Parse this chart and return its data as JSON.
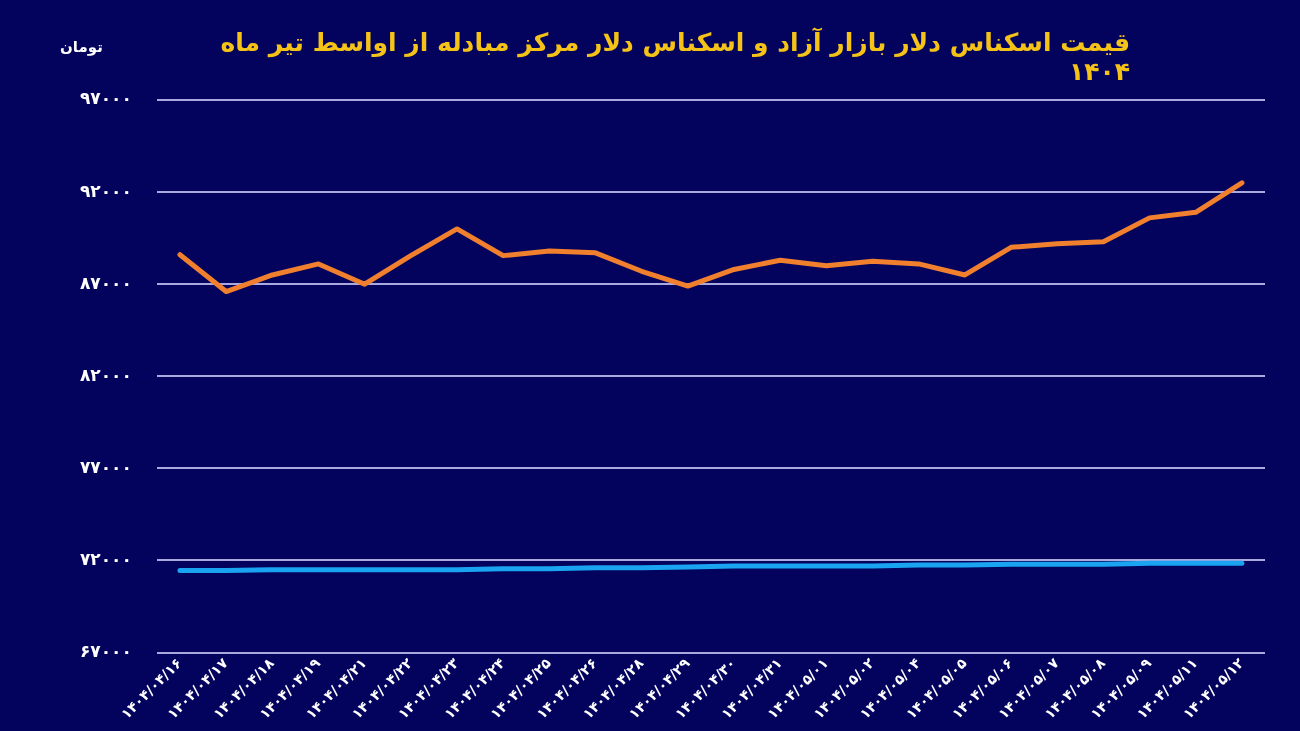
{
  "chart_data": {
    "type": "line",
    "title": "قیمت اسکناس دلار بازار آزاد و اسکناس دلار مرکز مبادله از اواسط تیر ماه ۱۴۰۴",
    "ylabel": "تومان",
    "categories": [
      "۱۴۰۴/۰۴/۱۶",
      "۱۴۰۴/۰۴/۱۷",
      "۱۴۰۴/۰۴/۱۸",
      "۱۴۰۴/۰۴/۱۹",
      "۱۴۰۴/۰۴/۲۱",
      "۱۴۰۴/۰۴/۲۲",
      "۱۴۰۴/۰۴/۲۳",
      "۱۴۰۴/۰۴/۲۴",
      "۱۴۰۴/۰۴/۲۵",
      "۱۴۰۴/۰۴/۲۶",
      "۱۴۰۴/۰۴/۲۸",
      "۱۴۰۴/۰۴/۲۹",
      "۱۴۰۴/۰۴/۳۰",
      "۱۴۰۴/۰۴/۳۱",
      "۱۴۰۴/۰۵/۰۱",
      "۱۴۰۴/۰۵/۰۲",
      "۱۴۰۴/۰۵/۰۴",
      "۱۴۰۴/۰۵/۰۵",
      "۱۴۰۴/۰۵/۰۶",
      "۱۴۰۴/۰۵/۰۷",
      "۱۴۰۴/۰۵/۰۸",
      "۱۴۰۴/۰۵/۰۹",
      "۱۴۰۴/۰۵/۱۱",
      "۱۴۰۴/۰۵/۱۲"
    ],
    "series": [
      {
        "color": "#f07f2e",
        "values": [
          88600,
          86600,
          87500,
          88100,
          87000,
          88550,
          90000,
          88550,
          88800,
          88700,
          87700,
          86900,
          87800,
          88300,
          88000,
          88250,
          88100,
          87500,
          89000,
          89200,
          89300,
          90600,
          90900,
          92500
        ]
      },
      {
        "color": "#1aa3f0",
        "values": [
          71450,
          71450,
          71500,
          71500,
          71500,
          71500,
          71500,
          71550,
          71550,
          71600,
          71600,
          71650,
          71700,
          71700,
          71700,
          71700,
          71750,
          71750,
          71800,
          71800,
          71800,
          71850,
          71850,
          71850
        ]
      }
    ],
    "ylim": [
      67000,
      97000
    ],
    "yticks": [
      {
        "value": 67000,
        "label": "۶۷۰۰۰"
      },
      {
        "value": 72000,
        "label": "۷۲۰۰۰"
      },
      {
        "value": 77000,
        "label": "۷۷۰۰۰"
      },
      {
        "value": 82000,
        "label": "۸۲۰۰۰"
      },
      {
        "value": 87000,
        "label": "۸۷۰۰۰"
      },
      {
        "value": 92000,
        "label": "۹۲۰۰۰"
      },
      {
        "value": 97000,
        "label": "۹۷۰۰۰"
      }
    ],
    "grid": "y",
    "legend": false,
    "marker": "none",
    "line_style": "solid"
  }
}
